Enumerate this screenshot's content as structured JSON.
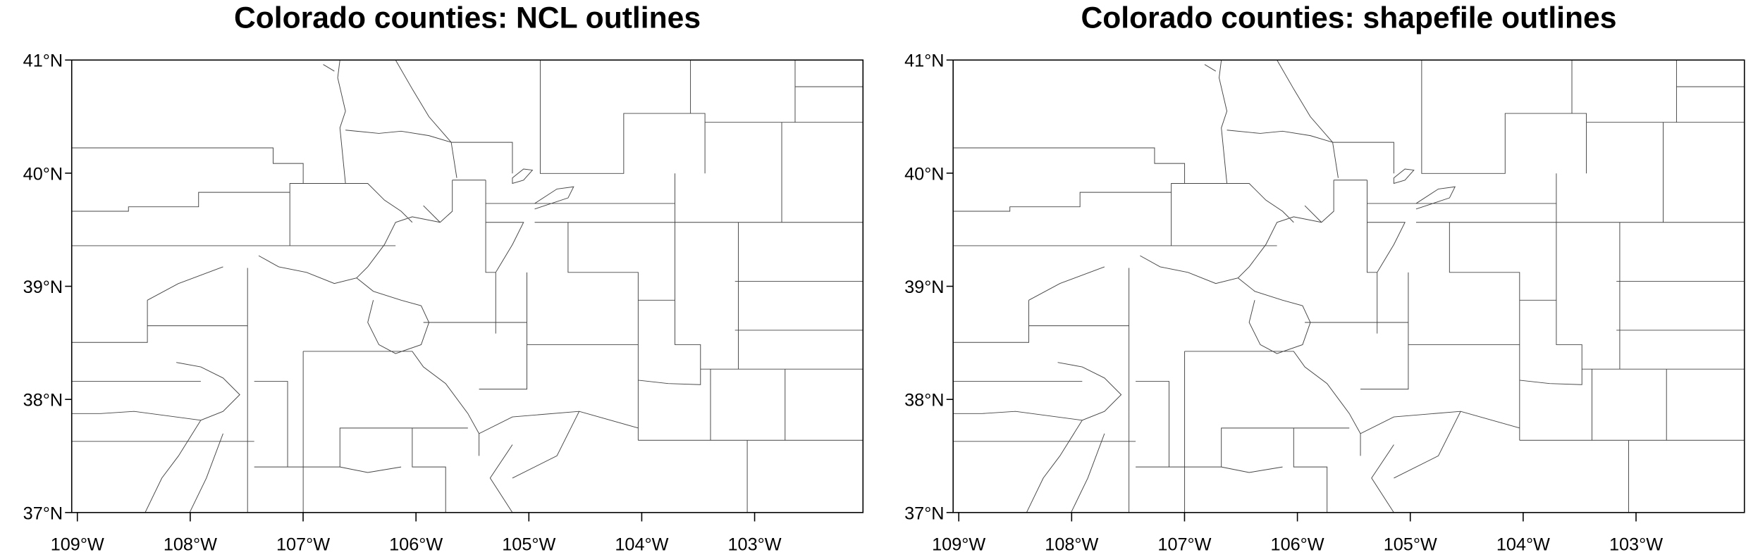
{
  "maps": [
    {
      "title": "Colorado counties: NCL outlines",
      "xlim": [
        -109.05,
        -102.04
      ],
      "ylim": [
        37,
        41
      ],
      "xticks": [
        {
          "value": -109,
          "label": "109°W"
        },
        {
          "value": -108,
          "label": "108°W"
        },
        {
          "value": -107,
          "label": "107°W"
        },
        {
          "value": -106,
          "label": "106°W"
        },
        {
          "value": -105,
          "label": "105°W"
        },
        {
          "value": -104,
          "label": "104°W"
        },
        {
          "value": -103,
          "label": "103°W"
        }
      ],
      "yticks": [
        {
          "value": 37,
          "label": "37°N"
        },
        {
          "value": 38,
          "label": "38°N"
        },
        {
          "value": 39,
          "label": "39°N"
        },
        {
          "value": 40,
          "label": "40°N"
        },
        {
          "value": 41,
          "label": "41°N"
        }
      ]
    },
    {
      "title": "Colorado counties: shapefile outlines",
      "xlim": [
        -109.05,
        -102.04
      ],
      "ylim": [
        37,
        41
      ],
      "xticks": [
        {
          "value": -109,
          "label": "109°W"
        },
        {
          "value": -108,
          "label": "108°W"
        },
        {
          "value": -107,
          "label": "107°W"
        },
        {
          "value": -106,
          "label": "106°W"
        },
        {
          "value": -105,
          "label": "105°W"
        },
        {
          "value": -104,
          "label": "104°W"
        },
        {
          "value": -103,
          "label": "103°W"
        }
      ],
      "yticks": [
        {
          "value": 37,
          "label": "37°N"
        },
        {
          "value": 38,
          "label": "38°N"
        },
        {
          "value": 39,
          "label": "39°N"
        },
        {
          "value": 40,
          "label": "40°N"
        },
        {
          "value": 41,
          "label": "41°N"
        }
      ]
    }
  ]
}
